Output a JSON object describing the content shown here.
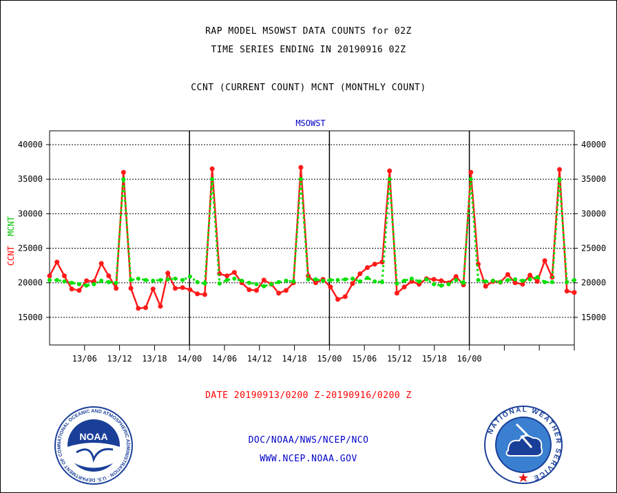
{
  "header": {
    "line1": "RAP MODEL MSOWST DATA COUNTS for 02Z",
    "line2": "TIME SERIES ENDING IN 20190916 02Z",
    "line3": "CCNT (CURRENT COUNT) MCNT (MONTHLY COUNT)"
  },
  "footer": {
    "date_range": "DATE 20190913/0200 Z-20190916/0200 Z",
    "org": "DOC/NOAA/NWS/NCEP/NCO",
    "url": "WWW.NCEP.NOAA.GOV",
    "noaa_logo_text": "NOAA",
    "noaa_ring_text": "NATIONAL OCEANIC AND ATMOSPHERIC ADMINISTRATION · U.S. DEPARTMENT OF COMMERCE ·",
    "nws_ring_text": "NATIONAL WEATHER SERVICE"
  },
  "colors": {
    "ccnt": "#ff1a1a",
    "mcnt": "#00e000",
    "plot_title": "#0000c8"
  },
  "chart_data": {
    "type": "line",
    "title": "MSOWST",
    "ylabel_series": [
      "CCNT",
      "MCNT"
    ],
    "ylim": [
      11000,
      42000
    ],
    "yticks": [
      15000,
      20000,
      25000,
      30000,
      35000,
      40000
    ],
    "ytick_labels": [
      "15000",
      "20000",
      "25000",
      "30000",
      "35000",
      "40000"
    ],
    "x_hours_range": [
      -4,
      86
    ],
    "xticks": [
      2,
      8,
      14,
      20,
      26,
      32,
      38,
      44,
      50,
      56,
      62,
      68,
      74,
      80,
      86
    ],
    "xtick_labels": [
      "13/06",
      "13/12",
      "13/18",
      "14/00",
      "14/06",
      "14/12",
      "14/18",
      "15/00",
      "15/06",
      "15/12",
      "15/18",
      "16/00"
    ],
    "xtick_label_hours": [
      2,
      8,
      14,
      20,
      26,
      32,
      38,
      44,
      50,
      56,
      62,
      68
    ],
    "day_boundaries_hours": [
      20,
      44,
      68
    ],
    "grid": true,
    "series": [
      {
        "name": "CCNT",
        "color": "#ff1a1a",
        "values": [
          21000,
          23000,
          21000,
          19100,
          18900,
          20300,
          20200,
          22800,
          21000,
          19200,
          36000,
          19200,
          16300,
          16400,
          19100,
          16600,
          21400,
          19200,
          19300,
          19000,
          18400,
          18300,
          36500,
          21300,
          21000,
          21500,
          20000,
          19000,
          18900,
          20400,
          19800,
          18500,
          18900,
          20000,
          36700,
          21000,
          20000,
          20500,
          19400,
          17600,
          18000,
          19900,
          21300,
          22200,
          22700,
          23000,
          36200,
          18500,
          19400,
          20200,
          19800,
          20600,
          20500,
          20300,
          20000,
          20900,
          19700,
          36000,
          22700,
          19500,
          20200,
          20100,
          21200,
          20000,
          19800,
          21100,
          20200,
          23200,
          20800,
          36400,
          18800,
          18600
        ]
      },
      {
        "name": "MCNT",
        "color": "#00e000",
        "values": [
          20400,
          20400,
          20200,
          20000,
          19800,
          19600,
          19800,
          20300,
          20100,
          20000,
          35000,
          20400,
          20600,
          20400,
          20300,
          20400,
          20500,
          20600,
          20400,
          20900,
          20100,
          19900,
          35000,
          19900,
          20400,
          20600,
          20300,
          20000,
          19800,
          19500,
          19800,
          20100,
          20300,
          20200,
          35000,
          20500,
          20500,
          20300,
          20400,
          20400,
          20500,
          20600,
          20200,
          20700,
          20200,
          20100,
          35000,
          19900,
          20300,
          20600,
          20200,
          20500,
          19800,
          19600,
          19800,
          20400,
          20000,
          35000,
          20400,
          20200,
          20300,
          20100,
          20400,
          20500,
          20300,
          20500,
          20800,
          20100,
          20100,
          35000,
          20100,
          20400
        ]
      }
    ]
  }
}
